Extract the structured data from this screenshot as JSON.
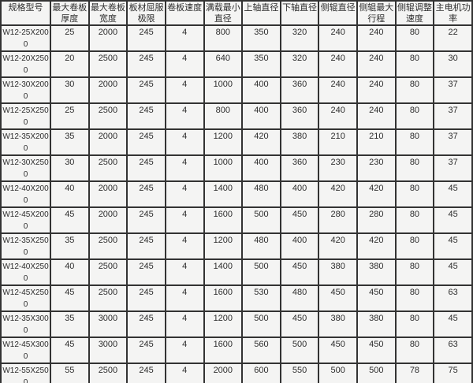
{
  "table": {
    "columns": [
      {
        "key": "model",
        "label": "规格型号"
      },
      {
        "key": "max-thickness",
        "label": "最大卷板厚度"
      },
      {
        "key": "max-width",
        "label": "最大卷板宽度"
      },
      {
        "key": "yield-limit",
        "label": "板材屈服极限"
      },
      {
        "key": "rolling-speed",
        "label": "卷板速度"
      },
      {
        "key": "min-diameter",
        "label": "满载最小直径"
      },
      {
        "key": "upper-shaft-dia",
        "label": "上轴直径"
      },
      {
        "key": "lower-shaft-dia",
        "label": "下轴直径"
      },
      {
        "key": "side-roll-dia",
        "label": "侧辊直径"
      },
      {
        "key": "side-roll-travel",
        "label": "侧辊最大行程"
      },
      {
        "key": "side-roll-adj-speed",
        "label": "侧辊调整速度"
      },
      {
        "key": "motor-power",
        "label": "主电机功率"
      }
    ],
    "rows": [
      {
        "model": "W12-25X2000",
        "values": [
          "25",
          "2000",
          "245",
          "4",
          "800",
          "350",
          "320",
          "240",
          "240",
          "80",
          "22"
        ]
      },
      {
        "model": "W12-20X2500",
        "values": [
          "20",
          "2500",
          "245",
          "4",
          "640",
          "350",
          "320",
          "240",
          "240",
          "80",
          "30"
        ]
      },
      {
        "model": "W12-30X2000",
        "values": [
          "30",
          "2000",
          "245",
          "4",
          "1000",
          "400",
          "360",
          "240",
          "240",
          "80",
          "37"
        ]
      },
      {
        "model": "W12-25X2500",
        "values": [
          "25",
          "2500",
          "245",
          "4",
          "800",
          "400",
          "360",
          "240",
          "240",
          "80",
          "37"
        ]
      },
      {
        "model": "W12-35X2000",
        "values": [
          "35",
          "2000",
          "245",
          "4",
          "1200",
          "420",
          "380",
          "210",
          "210",
          "80",
          "37"
        ]
      },
      {
        "model": "W12-30X2500",
        "values": [
          "30",
          "2500",
          "245",
          "4",
          "1000",
          "400",
          "360",
          "230",
          "230",
          "80",
          "37"
        ]
      },
      {
        "model": "W12-40X2000",
        "values": [
          "40",
          "2000",
          "245",
          "4",
          "1400",
          "480",
          "400",
          "420",
          "420",
          "80",
          "45"
        ]
      },
      {
        "model": "W12-45X2000",
        "values": [
          "45",
          "2000",
          "245",
          "4",
          "1600",
          "500",
          "450",
          "280",
          "280",
          "80",
          "45"
        ]
      },
      {
        "model": "W12-35X2500",
        "values": [
          "35",
          "2500",
          "245",
          "4",
          "1200",
          "480",
          "400",
          "420",
          "420",
          "80",
          "45"
        ]
      },
      {
        "model": "W12-40X2500",
        "values": [
          "40",
          "2500",
          "245",
          "4",
          "1400",
          "500",
          "450",
          "380",
          "380",
          "80",
          "45"
        ]
      },
      {
        "model": "W12-45X2500",
        "values": [
          "45",
          "2500",
          "245",
          "4",
          "1600",
          "530",
          "480",
          "450",
          "450",
          "80",
          "63"
        ]
      },
      {
        "model": "W12-35X3000",
        "values": [
          "35",
          "3000",
          "245",
          "4",
          "1200",
          "500",
          "450",
          "380",
          "380",
          "80",
          "45"
        ]
      },
      {
        "model": "W12-45X3000",
        "values": [
          "45",
          "3000",
          "245",
          "4",
          "1600",
          "560",
          "500",
          "450",
          "450",
          "80",
          "63"
        ]
      },
      {
        "model": "W12-55X2500",
        "values": [
          "55",
          "2500",
          "245",
          "4",
          "2000",
          "600",
          "550",
          "500",
          "500",
          "78",
          "75"
        ]
      }
    ],
    "style": {
      "border_color": "#333333",
      "background_color": "#f3f3f2",
      "text_color": "#2d2d2d"
    }
  }
}
